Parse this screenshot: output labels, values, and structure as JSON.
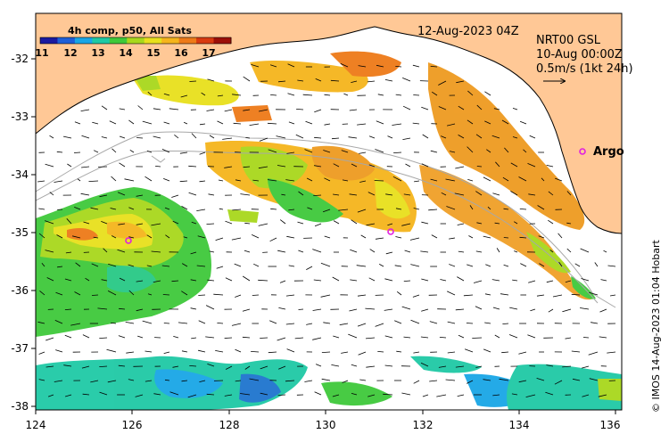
{
  "legend": {
    "title": "4h comp, p50, All Sats",
    "ticks": [
      "11",
      "12",
      "13",
      "14",
      "15",
      "16",
      "17"
    ],
    "colors": [
      "#1a1aa0",
      "#1e5fd8",
      "#19a6e6",
      "#1fc9a5",
      "#3fc93a",
      "#a8d81c",
      "#e8e01c",
      "#f5b51c",
      "#ee7a18",
      "#d83a10",
      "#9c0f08"
    ]
  },
  "timestamp": "12-Aug-2023 04Z",
  "currents": {
    "source": "NRT00 GSL",
    "date": "10-Aug 00:00Z",
    "scale": "0.5m/s (1kt 24h)"
  },
  "argo_label": "Argo",
  "credit": "© IMOS 14-Aug-2023 01:04 Hobart",
  "x_ticks": [
    "124",
    "126",
    "128",
    "130",
    "132",
    "134",
    "136"
  ],
  "y_ticks": [
    "-32",
    "-33",
    "-34",
    "-35",
    "-36",
    "-37",
    "-38"
  ],
  "colors": {
    "land": "#ffc896",
    "ocean": "#ffffff",
    "argo": "#e020e0",
    "isobath": "#a8a8a8"
  }
}
